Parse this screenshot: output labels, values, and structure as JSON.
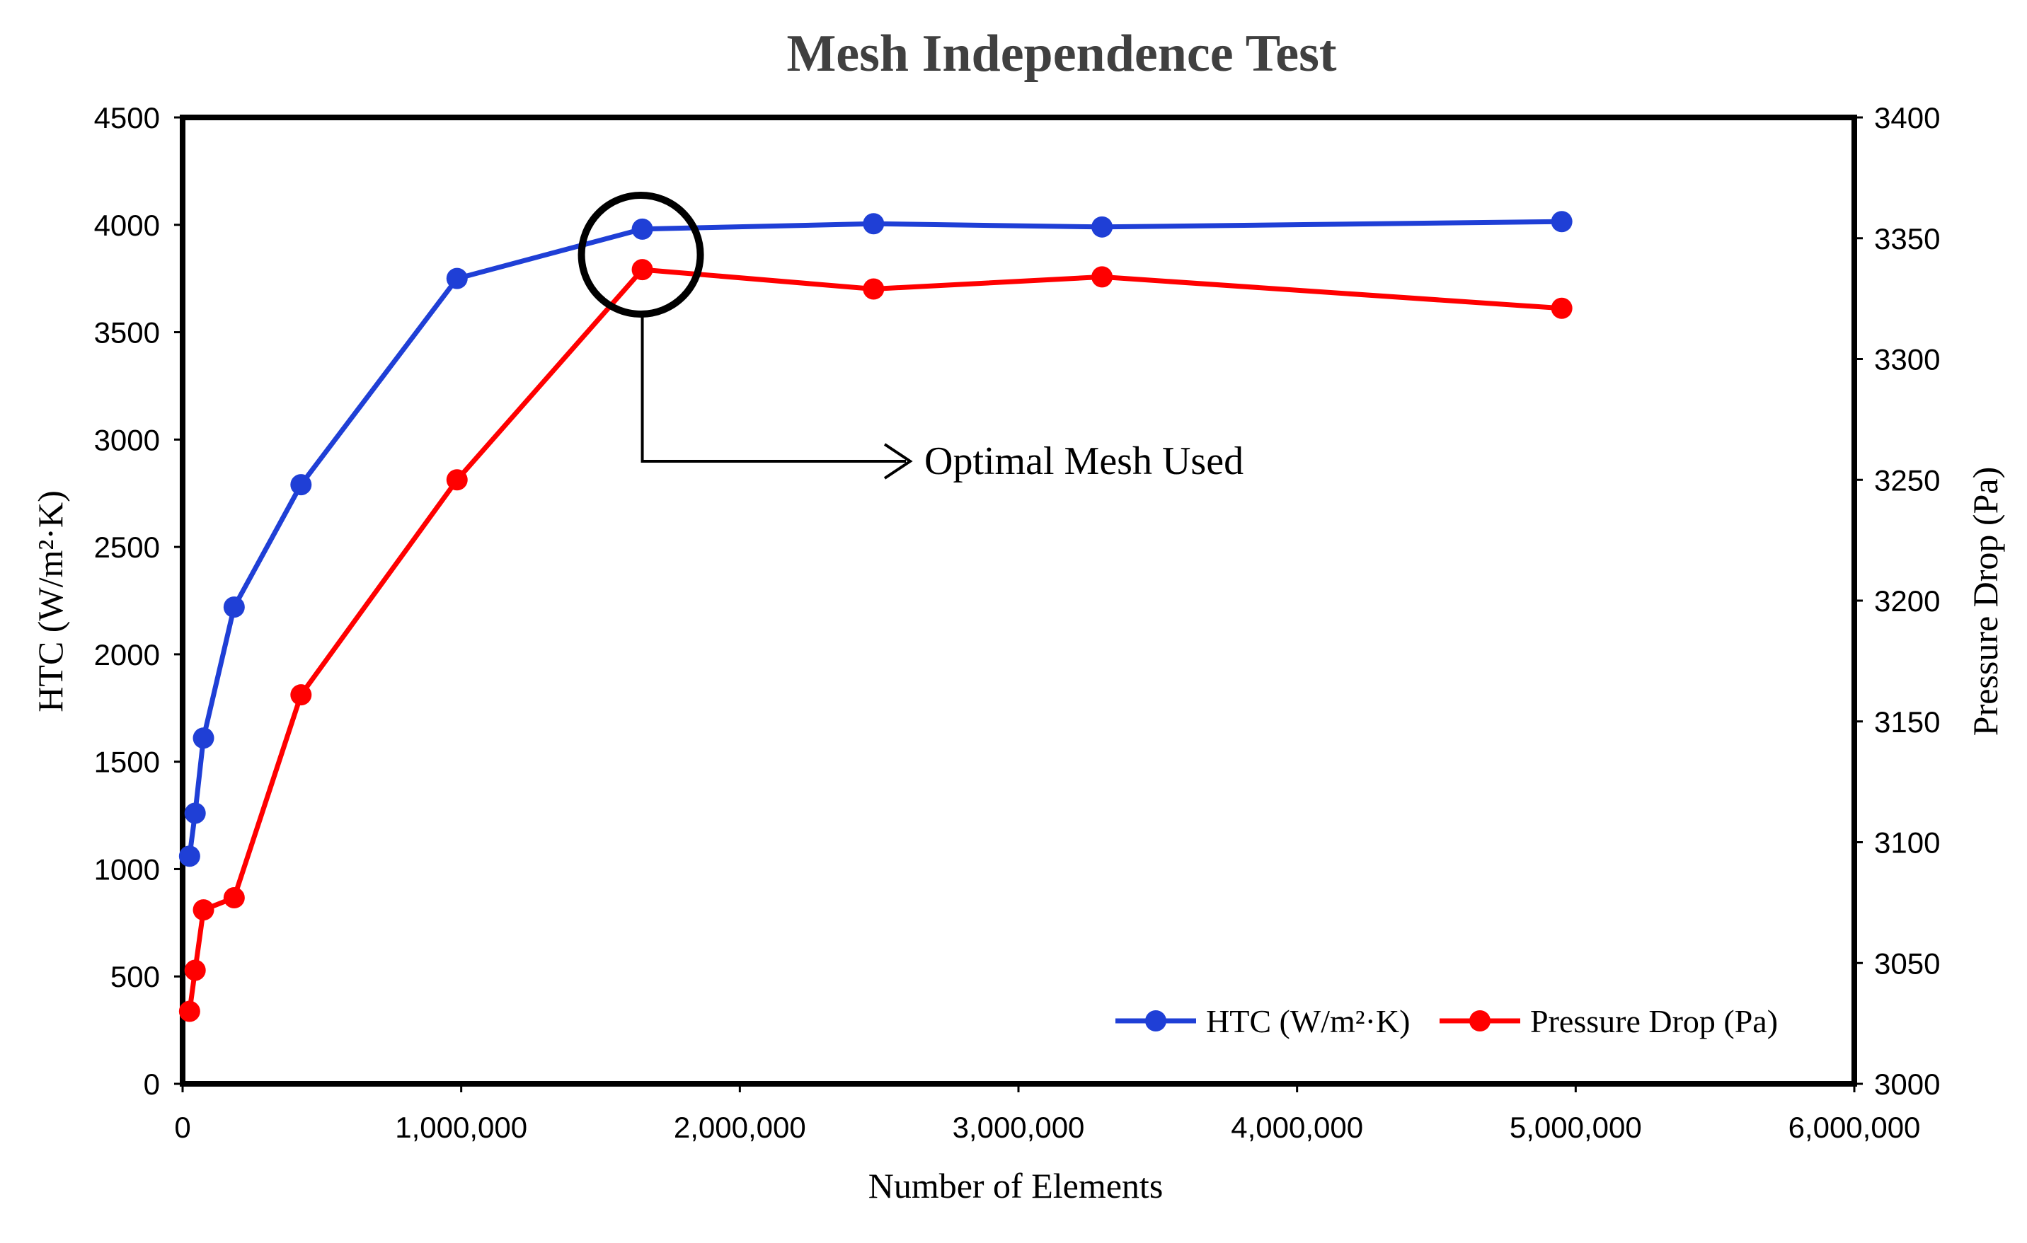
{
  "chart_data": {
    "type": "line",
    "title": "Mesh Independence Test",
    "xlabel": "Number of Elements",
    "ylabel": "HTC (W/m²·K)",
    "y2label": "Pressure Drop (Pa)",
    "xlim": [
      0,
      6000000
    ],
    "ylim": [
      0,
      4500
    ],
    "y2lim": [
      3000,
      3400
    ],
    "x_ticks": [
      0,
      1000000,
      2000000,
      3000000,
      4000000,
      5000000,
      6000000
    ],
    "x_tick_labels": [
      "0",
      "1,000,000",
      "2,000,000",
      "3,000,000",
      "4,000,000",
      "5,000,000",
      "6,000,000"
    ],
    "y_ticks": [
      0,
      500,
      1000,
      1500,
      2000,
      2500,
      3000,
      3500,
      4000,
      4500
    ],
    "y_tick_labels": [
      "0",
      "500",
      "1000",
      "1500",
      "2000",
      "2500",
      "3000",
      "3500",
      "4000",
      "4500"
    ],
    "y2_ticks": [
      3000,
      3050,
      3100,
      3150,
      3200,
      3250,
      3300,
      3350,
      3400
    ],
    "y2_tick_labels": [
      "3000",
      "3050",
      "3100",
      "3150",
      "3200",
      "3250",
      "3300",
      "3350",
      "3400"
    ],
    "grid": false,
    "legend_position": "bottom-right",
    "series": [
      {
        "name": "HTC (W/m²·K)",
        "axis": "left",
        "color": "#1f3fd6",
        "x": [
          25000,
          45000,
          75000,
          185000,
          425000,
          985000,
          1650000,
          2480000,
          3300000,
          4950000
        ],
        "y": [
          1060,
          1260,
          1610,
          2220,
          2790,
          3750,
          3980,
          4005,
          3990,
          4015
        ]
      },
      {
        "name": "Pressure Drop (Pa)",
        "axis": "right",
        "color": "#ff0000",
        "x": [
          25000,
          45000,
          75000,
          185000,
          425000,
          985000,
          1650000,
          2480000,
          3300000,
          4950000
        ],
        "y": [
          3030,
          3047,
          3072,
          3077,
          3161,
          3250,
          3337,
          3329,
          3334,
          3321
        ]
      }
    ],
    "annotation": {
      "text": "Optimal Mesh Used",
      "target_x": 1650000
    }
  }
}
